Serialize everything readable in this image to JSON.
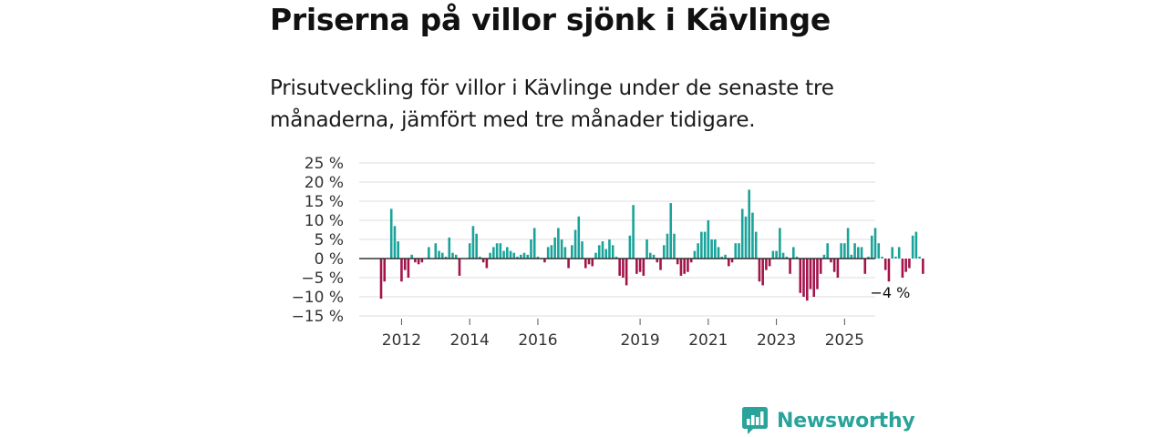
{
  "title": "Priserna på villor sjönk i Kävlinge",
  "subtitle": "Prisutveckling för villor i Kävlinge under de senaste tre månaderna, jämfört med tre månader tidigare.",
  "brand": {
    "name": "Newsworthy",
    "icon": "newsworthy-logo-icon"
  },
  "colors": {
    "positive": "#1aa39a",
    "negative": "#a3154a",
    "grid": "#dddddd",
    "zero": "#333333"
  },
  "chart_data": {
    "type": "bar",
    "title": "Priserna på villor sjönk i Kävlinge",
    "ylabel": "",
    "xlabel": "",
    "ylim": [
      -15,
      25
    ],
    "y_ticks": [
      25,
      20,
      15,
      10,
      5,
      0,
      -5,
      -10,
      -15
    ],
    "y_tick_labels": [
      "25 %",
      "20 %",
      "15 %",
      "10 %",
      "5 %",
      "0 %",
      "−5 %",
      "−10 %",
      "−15 %"
    ],
    "x_ticks": [
      {
        "label": "2012",
        "index": 6
      },
      {
        "label": "2014",
        "index": 26
      },
      {
        "label": "2016",
        "index": 46
      },
      {
        "label": "2019",
        "index": 76
      },
      {
        "label": "2021",
        "index": 96
      },
      {
        "label": "2023",
        "index": 116
      },
      {
        "label": "2025",
        "index": 136
      }
    ],
    "values": [
      -10.5,
      -6,
      null,
      13,
      8.5,
      4.5,
      -6,
      -3,
      -5,
      1,
      -1,
      -1.5,
      -1,
      0,
      3,
      0,
      4,
      2,
      1.5,
      0.5,
      5.5,
      1.5,
      1,
      -4.5,
      0,
      0,
      4,
      8.5,
      6.5,
      0.5,
      -1,
      -2.5,
      1.5,
      3,
      4,
      4,
      2,
      3,
      2,
      1.5,
      0.5,
      1,
      1.5,
      1,
      5,
      8,
      0.5,
      0,
      -1,
      3,
      3.5,
      5.5,
      8,
      5,
      3,
      -2.5,
      3.5,
      7.5,
      11,
      4.5,
      -2.5,
      -1.5,
      -2,
      1.5,
      3.5,
      4.5,
      2.5,
      5,
      3.5,
      0.5,
      -4.5,
      -5,
      -7,
      6,
      14,
      -4,
      -3.5,
      -4.5,
      5,
      1.5,
      1,
      -1,
      -3,
      3.5,
      6.5,
      14.5,
      6.5,
      -1.5,
      -4.5,
      -4,
      -3.5,
      -1,
      2,
      4,
      7,
      7,
      10,
      5,
      5,
      3,
      0.5,
      1,
      -2,
      -1,
      4,
      4,
      13,
      11,
      18,
      12,
      7,
      -6,
      -7,
      -3,
      -2,
      2,
      2,
      8,
      1.5,
      0.5,
      -4,
      3,
      0.5,
      -9,
      -10,
      -11,
      -8,
      -10,
      -8,
      -4,
      1,
      4,
      -1,
      -3.5,
      -5,
      4,
      4,
      8,
      1,
      4,
      3,
      3,
      -4,
      0.5,
      6,
      8,
      4,
      0.5,
      -3,
      -6,
      3,
      0.5,
      3,
      -5,
      -3.5,
      -2.5,
      6,
      7,
      0.5,
      -4
    ],
    "annotation": {
      "text": "−4 %",
      "value": -4,
      "index": 155
    }
  }
}
